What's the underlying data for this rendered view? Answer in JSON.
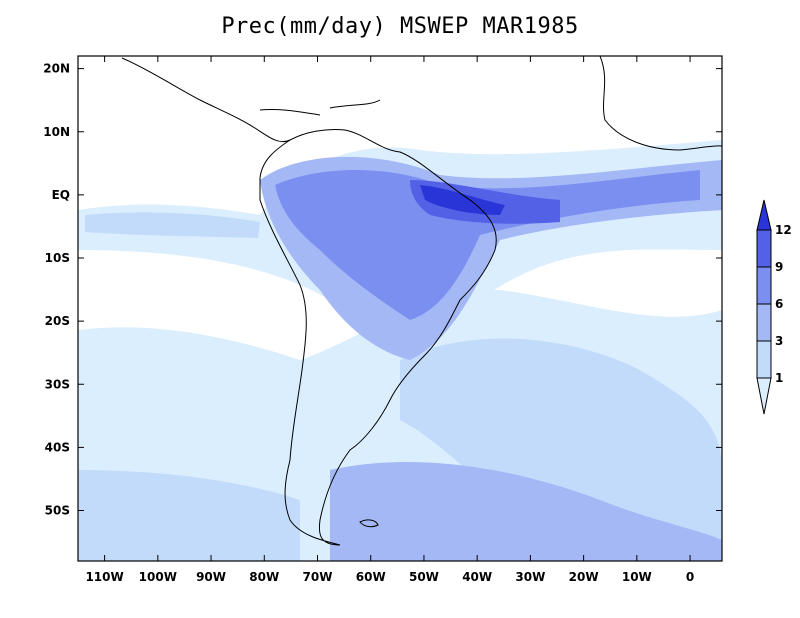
{
  "title": "Prec(mm/day) MSWEP MAR1985",
  "map": {
    "lon_labels": [
      "110W",
      "100W",
      "90W",
      "80W",
      "70W",
      "60W",
      "50W",
      "40W",
      "30W",
      "20W",
      "10W",
      "0"
    ],
    "lat_labels": [
      "20N",
      "10N",
      "EQ",
      "10S",
      "20S",
      "30S",
      "40S",
      "50S"
    ],
    "lon_range": [
      -115,
      6
    ],
    "lat_range": [
      -58,
      22
    ]
  },
  "colorbar": {
    "levels": [
      "1",
      "3",
      "6",
      "9",
      "12"
    ],
    "colors": [
      "#dbeefe",
      "#c2dbfb",
      "#a4b8f5",
      "#7b8ff1",
      "#5361e6",
      "#2a35d8"
    ]
  },
  "palette": {
    "ocean": "#ffffff",
    "land_outline": "#000000"
  }
}
